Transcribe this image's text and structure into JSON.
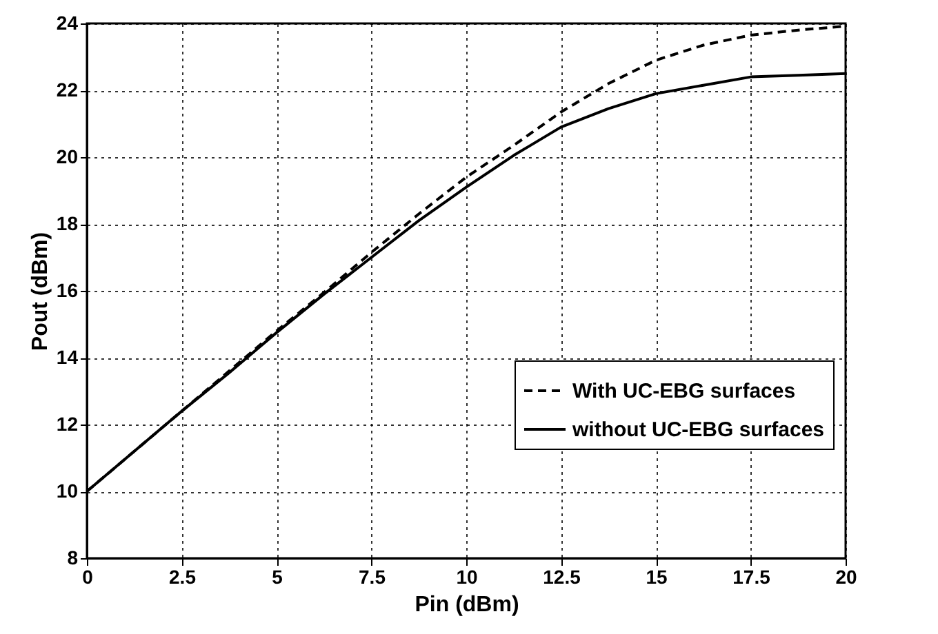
{
  "chart_data": {
    "type": "line",
    "xlabel": "Pin (dBm)",
    "ylabel": "Pout (dBm)",
    "x": [
      0,
      1.25,
      2.5,
      3.75,
      5,
      6.25,
      7.5,
      8.75,
      10,
      11.25,
      12.5,
      13.75,
      15,
      16.25,
      17.5,
      18.75,
      20
    ],
    "series": [
      {
        "name": "With UC-EBG surfaces",
        "color": "#000000",
        "line_style": "dashed",
        "values": [
          10,
          11.2,
          12.4,
          13.6,
          14.8,
          15.95,
          17.15,
          18.3,
          19.4,
          20.35,
          21.35,
          22.2,
          22.9,
          23.35,
          23.65,
          23.8,
          23.92
        ]
      },
      {
        "name": "without UC-EBG surfaces",
        "color": "#000000",
        "line_style": "solid",
        "values": [
          10,
          11.2,
          12.4,
          13.55,
          14.75,
          15.9,
          17.0,
          18.1,
          19.1,
          20.05,
          20.9,
          21.45,
          21.9,
          22.15,
          22.4,
          22.45,
          22.5
        ]
      }
    ],
    "xlim": [
      0,
      20
    ],
    "xticks": [
      0,
      2.5,
      5,
      7.5,
      10,
      12.5,
      15,
      17.5,
      20
    ],
    "ylim": [
      8,
      24
    ],
    "yticks": [
      8,
      10,
      12,
      14,
      16,
      18,
      20,
      22,
      24
    ],
    "grid": true,
    "legend": "right",
    "marker": "none"
  }
}
